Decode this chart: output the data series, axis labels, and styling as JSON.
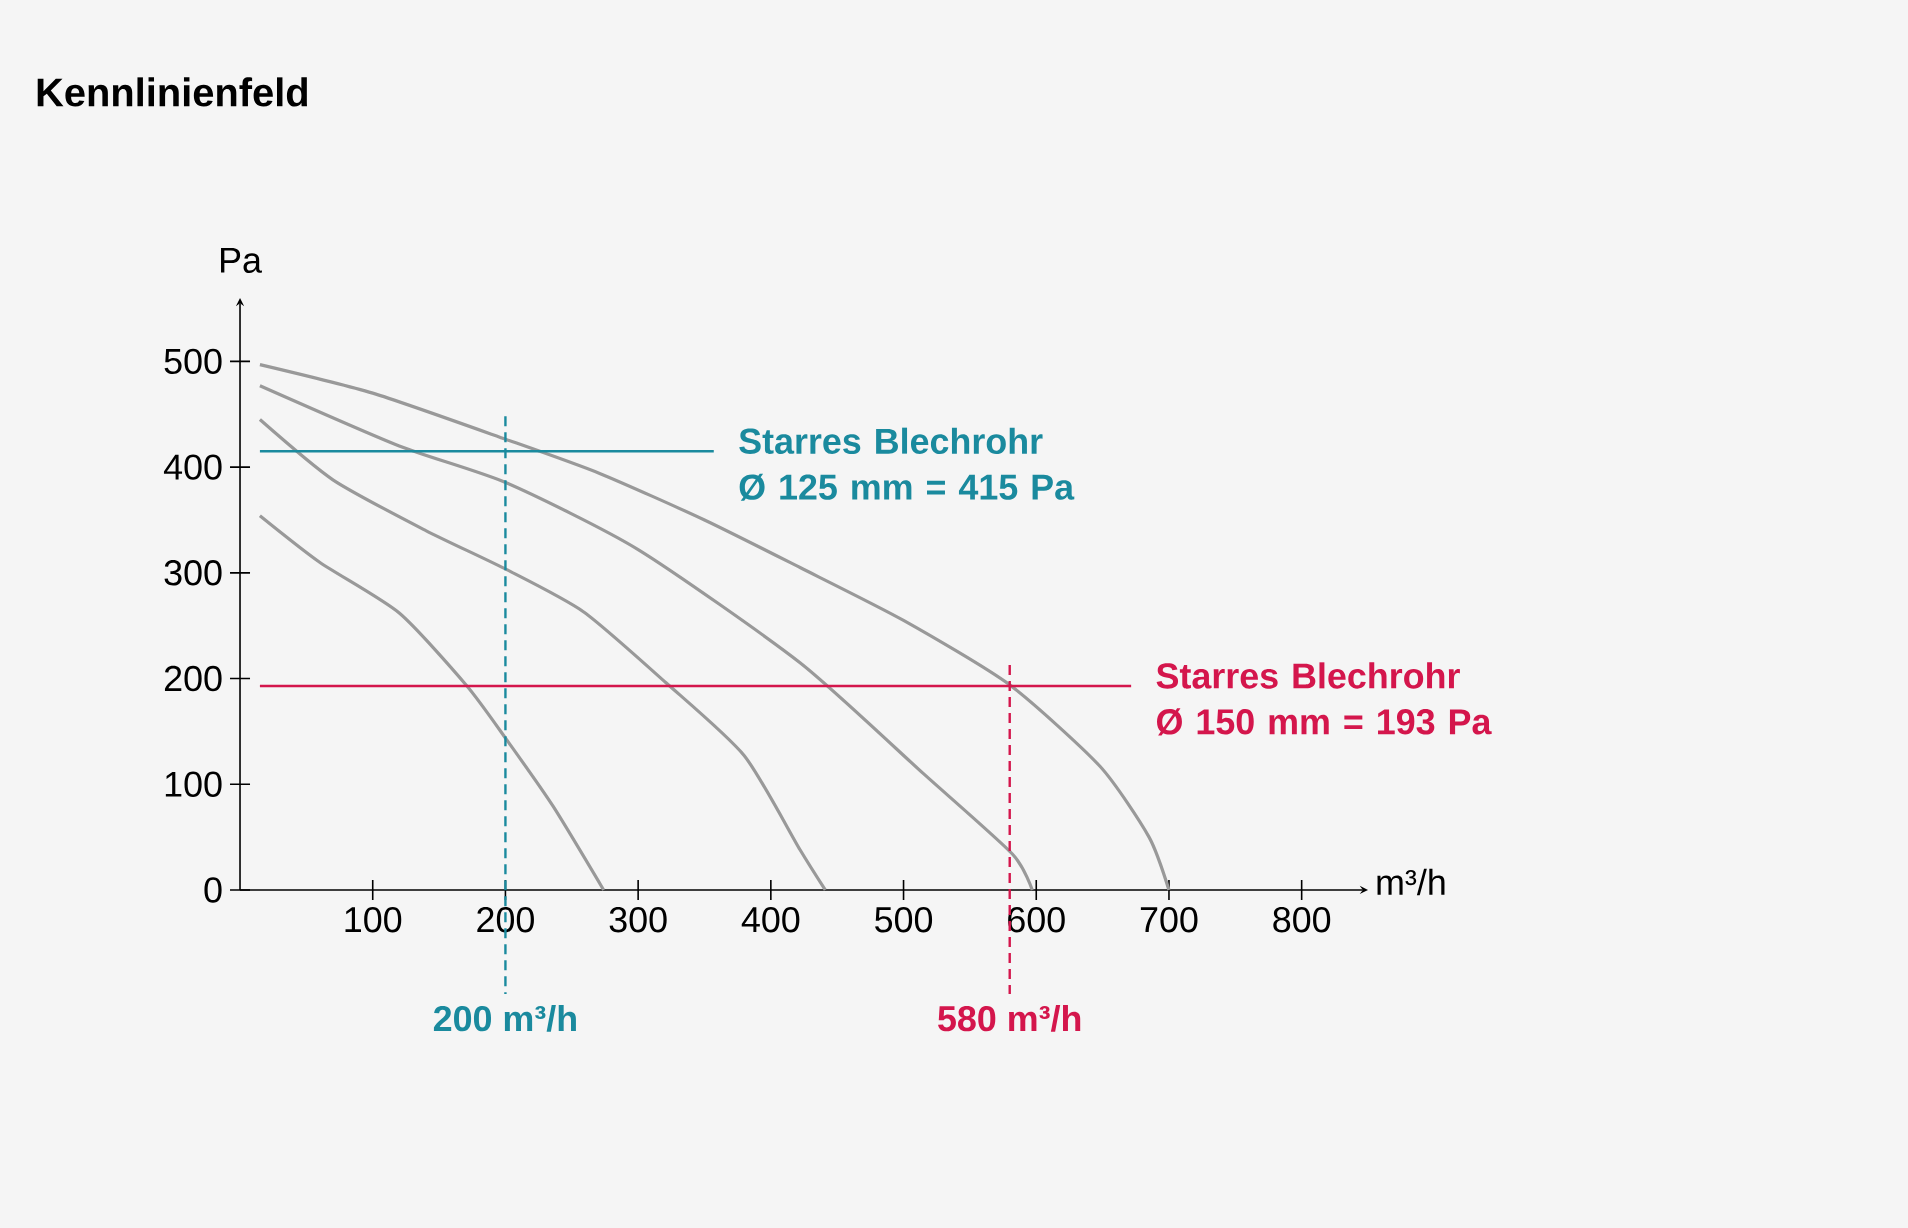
{
  "chart_data": {
    "type": "line",
    "title": "Kennlinienfeld",
    "xlabel": "m³/h",
    "ylabel": "Pa",
    "xlim": [
      0,
      850
    ],
    "ylim": [
      0,
      560
    ],
    "xticks": [
      100,
      200,
      300,
      400,
      500,
      600,
      700,
      800
    ],
    "yticks": [
      0,
      100,
      200,
      300,
      400,
      500
    ],
    "grid": false,
    "marker": "none",
    "line_style": "solid",
    "series": [
      {
        "color": "#999999",
        "x": [
          15,
          60,
          120,
          171,
          201,
          236,
          274
        ],
        "values": [
          354,
          310,
          262,
          193,
          142,
          79,
          0
        ]
      },
      {
        "color": "#999999",
        "x": [
          15,
          70,
          140,
          201,
          259,
          321,
          380,
          422,
          441
        ],
        "values": [
          445,
          388,
          340,
          303,
          263,
          196,
          127,
          38,
          0
        ]
      },
      {
        "color": "#999999",
        "x": [
          15,
          120,
          201,
          300,
          422,
          515,
          582,
          597
        ],
        "values": [
          477,
          420,
          385,
          322,
          215,
          110,
          34,
          0
        ]
      },
      {
        "color": "#999999",
        "x": [
          15,
          100,
          201,
          271,
          350,
          422,
          500,
          580,
          648,
          685,
          700
        ],
        "values": [
          497,
          470,
          426,
          394,
          350,
          305,
          255,
          194,
          117,
          50,
          0
        ]
      }
    ],
    "ref_lines": [
      {
        "axis": "y",
        "value": 415,
        "label": "Starres Blechrohr Ø 125 mm = 415 Pa",
        "color": "#1a8a9e",
        "line_style": "solid"
      },
      {
        "axis": "y",
        "value": 193,
        "label": "Starres Blechrohr Ø 150 mm = 193 Pa",
        "color": "#d4164c",
        "line_style": "solid"
      },
      {
        "axis": "x",
        "value": 200,
        "label": "200 m³/h",
        "color": "#1a8a9e",
        "line_style": "dashed"
      },
      {
        "axis": "x",
        "value": 580,
        "label": "580 m³/h",
        "color": "#d4164c",
        "line_style": "dashed"
      }
    ]
  }
}
